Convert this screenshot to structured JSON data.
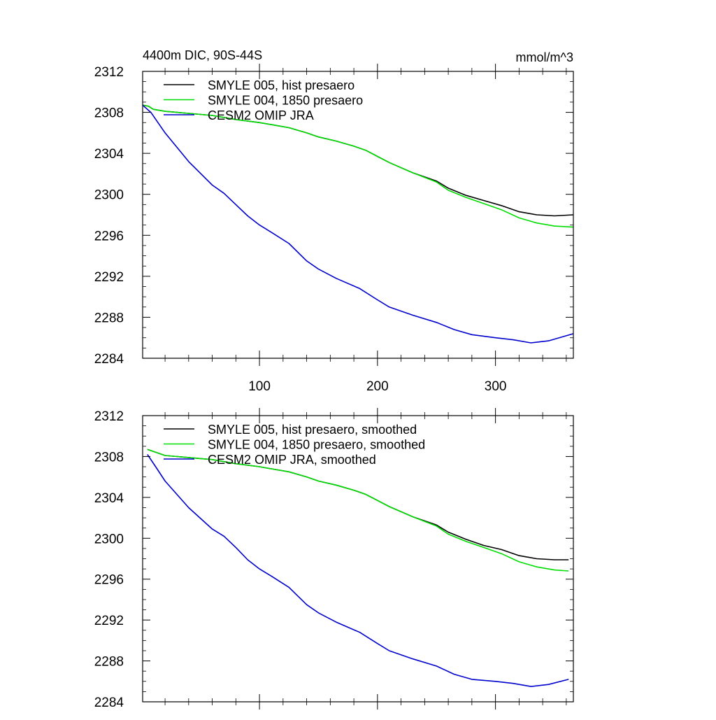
{
  "figure": {
    "title_left": "4400m DIC, 90S-44S",
    "title_right": "mmol/m^3"
  },
  "chart_data": [
    {
      "type": "line",
      "title": "4400m DIC, 90S-44S",
      "units": "mmol/m^3",
      "xlim": [
        1,
        366
      ],
      "ylim": [
        2284,
        2312
      ],
      "xticks": [
        100,
        200,
        300
      ],
      "yticks": [
        2284,
        2288,
        2292,
        2296,
        2300,
        2304,
        2308,
        2312
      ],
      "grid": false,
      "legend_position": "top-left",
      "series": [
        {
          "name": "SMYLE 005, hist presaero",
          "color": "#000000",
          "points": [
            [
              1,
              2308.7
            ],
            [
              6,
              2308.6
            ],
            [
              10,
              2308.3
            ],
            [
              20,
              2308.1
            ],
            [
              40,
              2307.9
            ],
            [
              60,
              2307.7
            ],
            [
              80,
              2307.3
            ],
            [
              100,
              2307.0
            ],
            [
              110,
              2306.8
            ],
            [
              125,
              2306.5
            ],
            [
              140,
              2306.0
            ],
            [
              150,
              2305.6
            ],
            [
              165,
              2305.2
            ],
            [
              180,
              2304.7
            ],
            [
              190,
              2304.3
            ],
            [
              200,
              2303.7
            ],
            [
              210,
              2303.1
            ],
            [
              230,
              2302.1
            ],
            [
              250,
              2301.3
            ],
            [
              260,
              2300.6
            ],
            [
              275,
              2299.9
            ],
            [
              290,
              2299.4
            ],
            [
              305,
              2298.9
            ],
            [
              320,
              2298.3
            ],
            [
              335,
              2298.0
            ],
            [
              350,
              2297.9
            ],
            [
              366,
              2298.0
            ]
          ]
        },
        {
          "name": "SMYLE 004, 1850 presaero",
          "color": "#00dd00",
          "points": [
            [
              1,
              2308.7
            ],
            [
              6,
              2308.6
            ],
            [
              10,
              2308.3
            ],
            [
              20,
              2308.1
            ],
            [
              40,
              2307.9
            ],
            [
              60,
              2307.7
            ],
            [
              80,
              2307.3
            ],
            [
              100,
              2307.0
            ],
            [
              110,
              2306.8
            ],
            [
              125,
              2306.5
            ],
            [
              140,
              2306.0
            ],
            [
              150,
              2305.6
            ],
            [
              165,
              2305.2
            ],
            [
              180,
              2304.7
            ],
            [
              190,
              2304.3
            ],
            [
              200,
              2303.7
            ],
            [
              210,
              2303.1
            ],
            [
              230,
              2302.1
            ],
            [
              250,
              2301.2
            ],
            [
              260,
              2300.4
            ],
            [
              275,
              2299.7
            ],
            [
              290,
              2299.1
            ],
            [
              305,
              2298.5
            ],
            [
              320,
              2297.7
            ],
            [
              335,
              2297.2
            ],
            [
              350,
              2296.9
            ],
            [
              366,
              2296.8
            ]
          ]
        },
        {
          "name": "CESM2 OMIP JRA",
          "color": "#0000cc",
          "points": [
            [
              1,
              2308.7
            ],
            [
              8,
              2308.0
            ],
            [
              20,
              2306.0
            ],
            [
              40,
              2303.2
            ],
            [
              60,
              2300.9
            ],
            [
              70,
              2300.1
            ],
            [
              80,
              2299.0
            ],
            [
              90,
              2297.9
            ],
            [
              100,
              2297.0
            ],
            [
              110,
              2296.3
            ],
            [
              125,
              2295.2
            ],
            [
              140,
              2293.5
            ],
            [
              150,
              2292.7
            ],
            [
              165,
              2291.8
            ],
            [
              185,
              2290.8
            ],
            [
              200,
              2289.7
            ],
            [
              210,
              2289.0
            ],
            [
              230,
              2288.2
            ],
            [
              250,
              2287.5
            ],
            [
              265,
              2286.8
            ],
            [
              280,
              2286.3
            ],
            [
              300,
              2286.0
            ],
            [
              315,
              2285.8
            ],
            [
              330,
              2285.5
            ],
            [
              345,
              2285.7
            ],
            [
              366,
              2286.4
            ]
          ]
        }
      ]
    },
    {
      "type": "line",
      "title": "",
      "xlim": [
        1,
        366
      ],
      "ylim": [
        2284,
        2312
      ],
      "xticks": [
        100,
        200,
        300
      ],
      "yticks": [
        2284,
        2288,
        2292,
        2296,
        2300,
        2304,
        2308,
        2312
      ],
      "grid": false,
      "legend_position": "top-left",
      "series": [
        {
          "name": "SMYLE 005, hist presaero, smoothed",
          "color": "#000000",
          "points": [
            [
              5,
              2308.7
            ],
            [
              10,
              2308.5
            ],
            [
              20,
              2308.1
            ],
            [
              40,
              2307.9
            ],
            [
              60,
              2307.7
            ],
            [
              80,
              2307.3
            ],
            [
              100,
              2307.0
            ],
            [
              110,
              2306.8
            ],
            [
              125,
              2306.5
            ],
            [
              140,
              2306.0
            ],
            [
              150,
              2305.6
            ],
            [
              165,
              2305.2
            ],
            [
              180,
              2304.7
            ],
            [
              190,
              2304.3
            ],
            [
              200,
              2303.7
            ],
            [
              210,
              2303.1
            ],
            [
              230,
              2302.1
            ],
            [
              250,
              2301.3
            ],
            [
              260,
              2300.6
            ],
            [
              275,
              2299.9
            ],
            [
              290,
              2299.3
            ],
            [
              305,
              2298.9
            ],
            [
              320,
              2298.3
            ],
            [
              335,
              2298.0
            ],
            [
              350,
              2297.9
            ],
            [
              362,
              2297.9
            ]
          ]
        },
        {
          "name": "SMYLE 004, 1850 presaero, smoothed",
          "color": "#00dd00",
          "points": [
            [
              5,
              2308.7
            ],
            [
              10,
              2308.5
            ],
            [
              20,
              2308.1
            ],
            [
              40,
              2307.9
            ],
            [
              60,
              2307.7
            ],
            [
              80,
              2307.3
            ],
            [
              100,
              2307.0
            ],
            [
              110,
              2306.8
            ],
            [
              125,
              2306.5
            ],
            [
              140,
              2306.0
            ],
            [
              150,
              2305.6
            ],
            [
              165,
              2305.2
            ],
            [
              180,
              2304.7
            ],
            [
              190,
              2304.3
            ],
            [
              200,
              2303.7
            ],
            [
              210,
              2303.1
            ],
            [
              230,
              2302.1
            ],
            [
              250,
              2301.2
            ],
            [
              260,
              2300.4
            ],
            [
              275,
              2299.7
            ],
            [
              290,
              2299.1
            ],
            [
              305,
              2298.5
            ],
            [
              320,
              2297.7
            ],
            [
              335,
              2297.2
            ],
            [
              350,
              2296.9
            ],
            [
              362,
              2296.8
            ]
          ]
        },
        {
          "name": "CESM2 OMIP JRA, smoothed",
          "color": "#0000cc",
          "points": [
            [
              5,
              2308.2
            ],
            [
              12,
              2307.0
            ],
            [
              20,
              2305.6
            ],
            [
              40,
              2303.0
            ],
            [
              60,
              2300.9
            ],
            [
              70,
              2300.2
            ],
            [
              80,
              2299.1
            ],
            [
              90,
              2297.9
            ],
            [
              100,
              2297.0
            ],
            [
              110,
              2296.3
            ],
            [
              125,
              2295.2
            ],
            [
              140,
              2293.5
            ],
            [
              150,
              2292.7
            ],
            [
              165,
              2291.8
            ],
            [
              185,
              2290.8
            ],
            [
              200,
              2289.7
            ],
            [
              210,
              2289.0
            ],
            [
              230,
              2288.2
            ],
            [
              250,
              2287.5
            ],
            [
              265,
              2286.7
            ],
            [
              280,
              2286.2
            ],
            [
              300,
              2286.0
            ],
            [
              315,
              2285.8
            ],
            [
              330,
              2285.5
            ],
            [
              345,
              2285.7
            ],
            [
              362,
              2286.2
            ]
          ]
        }
      ]
    }
  ]
}
